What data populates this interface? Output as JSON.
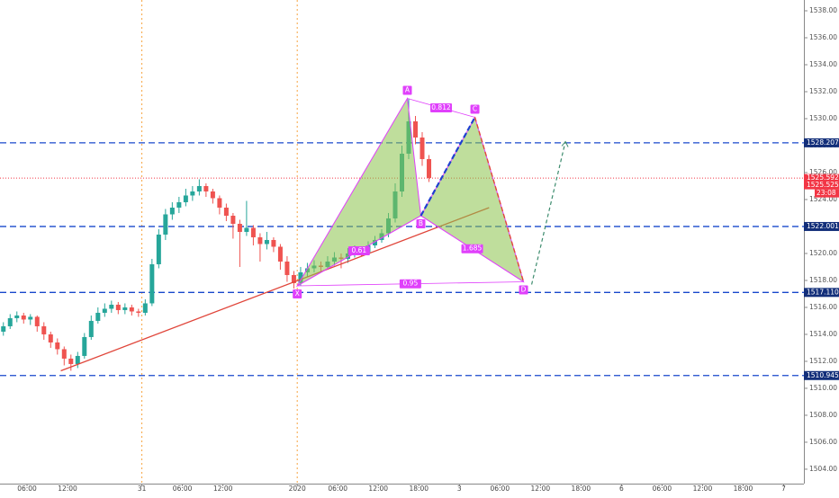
{
  "chart_data": {
    "type": "candlestick",
    "xlim": [
      0,
      119
    ],
    "ylim": [
      1502.93,
      1538.8
    ],
    "xticks": [
      {
        "value": 4,
        "label": "06:00"
      },
      {
        "value": 10,
        "label": "12:00"
      },
      {
        "value": 21,
        "label": "31"
      },
      {
        "value": 27,
        "label": "06:00"
      },
      {
        "value": 33,
        "label": "12:00"
      },
      {
        "value": 44,
        "label": "2020"
      },
      {
        "value": 50,
        "label": "06:00"
      },
      {
        "value": 56,
        "label": "12:00"
      },
      {
        "value": 62,
        "label": "18:00"
      },
      {
        "value": 68,
        "label": "3"
      },
      {
        "value": 74,
        "label": "06:00"
      },
      {
        "value": 80,
        "label": "12:00"
      },
      {
        "value": 86,
        "label": "18:00"
      },
      {
        "value": 92,
        "label": "6"
      },
      {
        "value": 98,
        "label": "06:00"
      },
      {
        "value": 104,
        "label": "12:00"
      },
      {
        "value": 110,
        "label": "18:00"
      },
      {
        "value": 116,
        "label": "7"
      }
    ],
    "yticks": [
      {
        "value": 1504,
        "label": "1504.00"
      },
      {
        "value": 1506,
        "label": "1506.00"
      },
      {
        "value": 1508,
        "label": "1508.00"
      },
      {
        "value": 1510,
        "label": "1510.00"
      },
      {
        "value": 1512,
        "label": "1512.00"
      },
      {
        "value": 1514,
        "label": "1514.00"
      },
      {
        "value": 1516,
        "label": "1516.00"
      },
      {
        "value": 1518,
        "label": "1518.00"
      },
      {
        "value": 1520,
        "label": "1520.00"
      },
      {
        "value": 1522,
        "label": "1522.00"
      },
      {
        "value": 1524,
        "label": "1524.00"
      },
      {
        "value": 1526,
        "label": "1526.00"
      },
      {
        "value": 1528,
        "label": "1528.00"
      },
      {
        "value": 1530,
        "label": "1530.00"
      },
      {
        "value": 1532,
        "label": "1532.00"
      },
      {
        "value": 1534,
        "label": "1534.00"
      },
      {
        "value": 1536,
        "label": "1536.00"
      },
      {
        "value": 1538,
        "label": "1538.00"
      }
    ],
    "up_color": "#26a69a",
    "down_color": "#ef5350",
    "ohlc": [
      [
        1514.2,
        1514.9,
        1513.9,
        1514.6
      ],
      [
        1514.6,
        1515.5,
        1514.4,
        1515.2
      ],
      [
        1515.2,
        1515.7,
        1514.9,
        1515.4
      ],
      [
        1515.4,
        1515.6,
        1514.8,
        1515.1
      ],
      [
        1515.1,
        1515.5,
        1514.7,
        1515.3
      ],
      [
        1515.3,
        1515.4,
        1514.2,
        1514.6
      ],
      [
        1514.6,
        1514.9,
        1513.6,
        1514.0
      ],
      [
        1514.0,
        1514.2,
        1513.0,
        1513.4
      ],
      [
        1513.4,
        1513.7,
        1512.5,
        1512.9
      ],
      [
        1512.9,
        1513.1,
        1511.7,
        1512.2
      ],
      [
        1512.2,
        1512.5,
        1511.3,
        1511.8
      ],
      [
        1511.8,
        1512.7,
        1511.5,
        1512.4
      ],
      [
        1512.4,
        1514.1,
        1512.2,
        1513.8
      ],
      [
        1513.8,
        1515.4,
        1513.6,
        1515.0
      ],
      [
        1515.0,
        1516.0,
        1514.8,
        1515.6
      ],
      [
        1515.6,
        1516.3,
        1515.3,
        1515.9
      ],
      [
        1515.9,
        1516.5,
        1515.6,
        1516.2
      ],
      [
        1516.2,
        1516.4,
        1515.5,
        1515.8
      ],
      [
        1515.8,
        1516.3,
        1515.5,
        1516.0
      ],
      [
        1516.0,
        1516.2,
        1515.4,
        1515.7
      ],
      [
        1515.7,
        1515.9,
        1515.3,
        1515.6
      ],
      [
        1515.6,
        1516.6,
        1515.4,
        1516.3
      ],
      [
        1516.3,
        1519.6,
        1516.1,
        1519.2
      ],
      [
        1519.2,
        1521.8,
        1518.9,
        1521.4
      ],
      [
        1521.4,
        1523.3,
        1521.0,
        1522.9
      ],
      [
        1522.9,
        1523.8,
        1522.5,
        1523.4
      ],
      [
        1523.4,
        1524.2,
        1523.0,
        1523.8
      ],
      [
        1523.8,
        1524.8,
        1523.5,
        1524.3
      ],
      [
        1524.3,
        1525.0,
        1523.9,
        1524.6
      ],
      [
        1524.6,
        1525.5,
        1524.3,
        1525.0
      ],
      [
        1525.0,
        1525.2,
        1524.2,
        1524.6
      ],
      [
        1524.6,
        1524.8,
        1523.7,
        1524.1
      ],
      [
        1524.1,
        1524.3,
        1522.9,
        1523.4
      ],
      [
        1523.4,
        1523.7,
        1522.4,
        1522.8
      ],
      [
        1522.8,
        1523.0,
        1521.1,
        1522.2
      ],
      [
        1522.2,
        1522.5,
        1519.0,
        1521.6
      ],
      [
        1521.6,
        1523.9,
        1521.3,
        1521.9
      ],
      [
        1521.9,
        1522.1,
        1520.6,
        1521.2
      ],
      [
        1521.2,
        1521.5,
        1519.4,
        1520.7
      ],
      [
        1520.7,
        1521.6,
        1520.3,
        1521.0
      ],
      [
        1521.0,
        1521.2,
        1520.1,
        1520.5
      ],
      [
        1520.5,
        1520.7,
        1518.8,
        1519.4
      ],
      [
        1519.4,
        1519.8,
        1517.9,
        1518.4
      ],
      [
        1518.4,
        1518.7,
        1517.4,
        1517.8
      ],
      [
        1517.8,
        1519.0,
        1517.6,
        1518.6
      ],
      [
        1518.6,
        1519.3,
        1518.3,
        1518.9
      ],
      [
        1518.9,
        1519.5,
        1518.6,
        1519.1
      ],
      [
        1519.1,
        1519.4,
        1518.6,
        1519.0
      ],
      [
        1519.0,
        1519.8,
        1518.8,
        1519.4
      ],
      [
        1519.4,
        1520.1,
        1519.1,
        1519.7
      ],
      [
        1519.7,
        1520.0,
        1518.9,
        1519.6
      ],
      [
        1519.6,
        1520.4,
        1519.3,
        1520.0
      ],
      [
        1520.0,
        1520.6,
        1519.7,
        1520.3
      ],
      [
        1520.3,
        1520.5,
        1519.8,
        1520.1
      ],
      [
        1520.1,
        1520.9,
        1519.9,
        1520.6
      ],
      [
        1520.6,
        1521.3,
        1520.4,
        1521.0
      ],
      [
        1521.0,
        1521.8,
        1520.8,
        1521.5
      ],
      [
        1521.5,
        1523.0,
        1521.2,
        1522.6
      ],
      [
        1522.6,
        1525.2,
        1522.3,
        1524.6
      ],
      [
        1524.6,
        1528.0,
        1524.2,
        1527.4
      ],
      [
        1527.4,
        1531.5,
        1527.0,
        1529.8
      ],
      [
        1529.8,
        1530.2,
        1528.1,
        1528.6
      ],
      [
        1528.6,
        1529.0,
        1526.5,
        1527.0
      ],
      [
        1527.0,
        1527.3,
        1525.3,
        1525.6
      ]
    ],
    "session_breaks": [
      21,
      44
    ],
    "price_lines": [
      {
        "value": 1528.207
      },
      {
        "value": 1522.001
      },
      {
        "value": 1517.11,
        "label": "1517.110"
      },
      {
        "value": 1510.945
      }
    ],
    "line_color": "#1848cc",
    "current_price": {
      "value": 1525.592,
      "second": "1525.525",
      "countdown": "23:08",
      "color": "#f23645"
    },
    "trendline": {
      "x": [
        9,
        72.4
      ],
      "y": [
        1511.3,
        1523.4
      ],
      "color": "#e0453a"
    },
    "pattern": {
      "points": [
        {
          "label": "X",
          "x": 44,
          "y": 1517.6
        },
        {
          "label": "A",
          "x": 60.3,
          "y": 1531.5
        },
        {
          "label": "B",
          "x": 62.3,
          "y": 1522.8
        },
        {
          "label": "C",
          "x": 70.3,
          "y": 1530.1
        },
        {
          "label": "D",
          "x": 77.5,
          "y": 1517.9
        }
      ],
      "ratios": [
        "0.812",
        "0.61",
        "1.685",
        "0.95"
      ],
      "color": "#e040fb",
      "fill": "#8bc34a"
    },
    "projection": {
      "x": [
        78.7,
        83.7
      ],
      "y": [
        1517.7,
        1528.3
      ],
      "color": "#3d8c6e"
    }
  }
}
